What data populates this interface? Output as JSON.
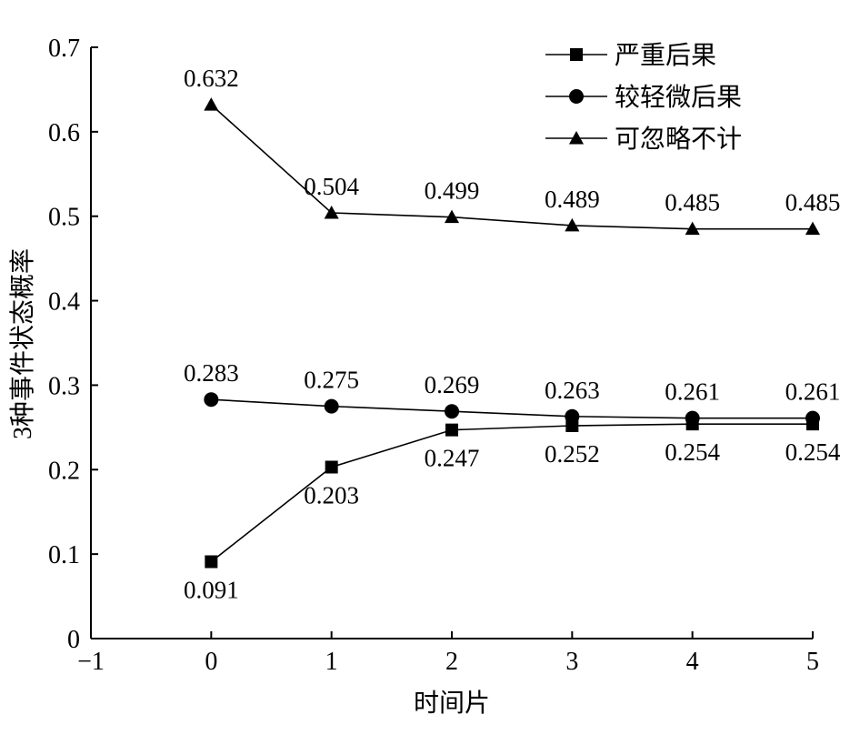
{
  "chart_data": {
    "type": "line",
    "title": "",
    "xlabel": "时间片",
    "ylabel": "3种事件状态概率",
    "xlim": [
      -1,
      5
    ],
    "ylim": [
      0,
      0.7
    ],
    "xticks": [
      "−1",
      "0",
      "1",
      "2",
      "3",
      "4",
      "5"
    ],
    "yticks": [
      "0",
      "0.1",
      "0.2",
      "0.3",
      "0.4",
      "0.5",
      "0.6",
      "0.7"
    ],
    "grid": false,
    "legend_position": "top-right",
    "x": [
      0,
      1,
      2,
      3,
      4,
      5
    ],
    "series": [
      {
        "name": "严重后果",
        "marker": "square",
        "values": [
          0.091,
          0.203,
          0.247,
          0.252,
          0.254,
          0.254
        ],
        "labels": [
          "0.091",
          "0.203",
          "0.247",
          "0.252",
          "0.254",
          "0.254"
        ],
        "label_position": "below"
      },
      {
        "name": "较轻微后果",
        "marker": "circle",
        "values": [
          0.283,
          0.275,
          0.269,
          0.263,
          0.261,
          0.261
        ],
        "labels": [
          "0.283",
          "0.275",
          "0.269",
          "0.263",
          "0.261",
          "0.261"
        ],
        "label_position": "above"
      },
      {
        "name": "可忽略不计",
        "marker": "triangle",
        "values": [
          0.632,
          0.504,
          0.499,
          0.489,
          0.485,
          0.485
        ],
        "labels": [
          "0.632",
          "0.504",
          "0.499",
          "0.489",
          "0.485",
          "0.485"
        ],
        "label_position": "above"
      }
    ]
  }
}
